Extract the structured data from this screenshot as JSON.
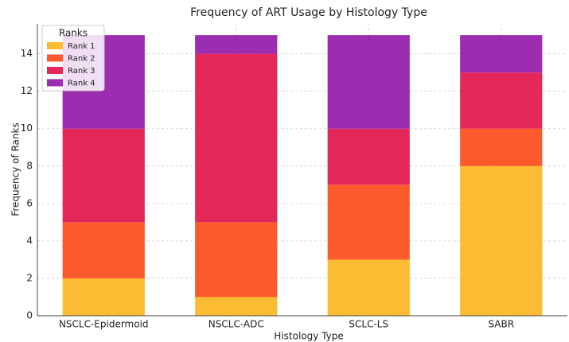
{
  "chart_data": {
    "type": "stacked_bar",
    "title": "Frequency of ART Usage by Histology Type",
    "x_label": "Histology Type",
    "y_label": "Frequency of Ranks",
    "categories": [
      "NSCLC-Epidermoid",
      "NSCLC-ADC",
      "SCLC-LS",
      "SABR"
    ],
    "series": [
      {
        "name": "Rank 1",
        "color": "#fbbc33",
        "values": [
          2,
          1,
          3,
          8
        ]
      },
      {
        "name": "Rank 2",
        "color": "#fc5a2c",
        "values": [
          3,
          4,
          4,
          2
        ]
      },
      {
        "name": "Rank 3",
        "color": "#e5285a",
        "values": [
          5,
          9,
          3,
          3
        ]
      },
      {
        "name": "Rank 4",
        "color": "#9c2cb0",
        "values": [
          5,
          1,
          5,
          2
        ]
      }
    ],
    "legend_title": "Ranks",
    "legend": "upper left",
    "ylim": [
      0,
      15.6
    ],
    "yticks": [
      0,
      2,
      4,
      6,
      8,
      10,
      12,
      14
    ],
    "grid": true
  }
}
